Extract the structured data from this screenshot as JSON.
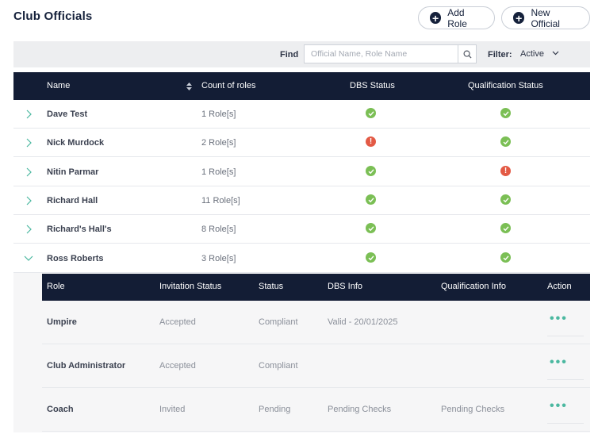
{
  "page": {
    "title": "Club Officials"
  },
  "actions": {
    "add_role": "Add Role",
    "new_official": "New Official"
  },
  "search": {
    "label": "Find",
    "placeholder": "Official Name, Role Name",
    "value": ""
  },
  "filter": {
    "label": "Filter:",
    "value": "Active"
  },
  "table": {
    "columns": {
      "name": "Name",
      "count": "Count of roles",
      "dbs": "DBS Status",
      "qualification": "Qualification Status"
    },
    "rows": [
      {
        "name": "Dave Test",
        "count": "1 Role[s]",
        "dbs": "ok",
        "qualification": "ok",
        "expanded": false
      },
      {
        "name": "Nick Murdock",
        "count": "2 Role[s]",
        "dbs": "error",
        "qualification": "ok",
        "expanded": false
      },
      {
        "name": "Nitin Parmar",
        "count": "1 Role[s]",
        "dbs": "ok",
        "qualification": "error",
        "expanded": false
      },
      {
        "name": "Richard Hall",
        "count": "11 Role[s]",
        "dbs": "ok",
        "qualification": "ok",
        "expanded": false
      },
      {
        "name": "Richard's Hall's",
        "count": "8 Role[s]",
        "dbs": "ok",
        "qualification": "ok",
        "expanded": false
      },
      {
        "name": "Ross Roberts",
        "count": "3 Role[s]",
        "dbs": "ok",
        "qualification": "ok",
        "expanded": true
      }
    ]
  },
  "roles_table": {
    "columns": {
      "role": "Role",
      "invitation": "Invitation Status",
      "status": "Status",
      "dbs_info": "DBS Info",
      "qualification_info": "Qualification Info",
      "action": "Action"
    },
    "rows": [
      {
        "role": "Umpire",
        "invitation": "Accepted",
        "status": "Compliant",
        "dbs_info": "Valid - 20/01/2025",
        "qualification_info": ""
      },
      {
        "role": "Club Administrator",
        "invitation": "Accepted",
        "status": "Compliant",
        "dbs_info": "",
        "qualification_info": ""
      },
      {
        "role": "Coach",
        "invitation": "Invited",
        "status": "Pending",
        "dbs_info": "Pending Checks",
        "qualification_info": "Pending Checks"
      }
    ]
  },
  "colors": {
    "header_bg": "#131d35",
    "ok": "#7bbf55",
    "error": "#e35a45",
    "accent": "#4bb8a0"
  }
}
